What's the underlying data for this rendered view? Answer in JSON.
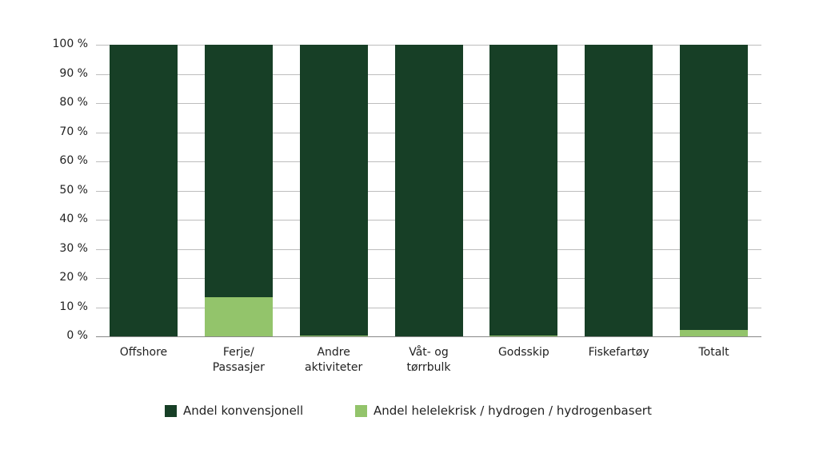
{
  "chart_data": {
    "type": "bar",
    "stacked": true,
    "title": "",
    "xlabel": "",
    "ylabel": "",
    "ylim": [
      0,
      100
    ],
    "yticks": [
      "0 %",
      "10 %",
      "20 %",
      "30 %",
      "40 %",
      "50 %",
      "60 %",
      "70 %",
      "80 %",
      "90 %",
      "100 %"
    ],
    "grid": true,
    "legend_position": "bottom",
    "categories": [
      "Offshore",
      "Ferje/\nPassasjer",
      "Andre\naktiviteter",
      "Våt- og\ntørrbulk",
      "Godsskip",
      "Fiskefartøy",
      "Totalt"
    ],
    "series": [
      {
        "name": "Andel helelekrisk / hydrogen / hydrogenbasert",
        "color": "#93c46b",
        "values": [
          0,
          13.4,
          0.4,
          0,
          0.4,
          0,
          2.3
        ]
      },
      {
        "name": "Andel konvensjonell",
        "color": "#173f26",
        "values": [
          100,
          86.6,
          99.6,
          100,
          99.6,
          100,
          97.7
        ]
      }
    ]
  },
  "legend": {
    "items": [
      {
        "label": "Andel konvensjonell",
        "color": "#173f26"
      },
      {
        "label": "Andel helelekrisk / hydrogen / hydrogenbasert",
        "color": "#93c46b"
      }
    ]
  }
}
